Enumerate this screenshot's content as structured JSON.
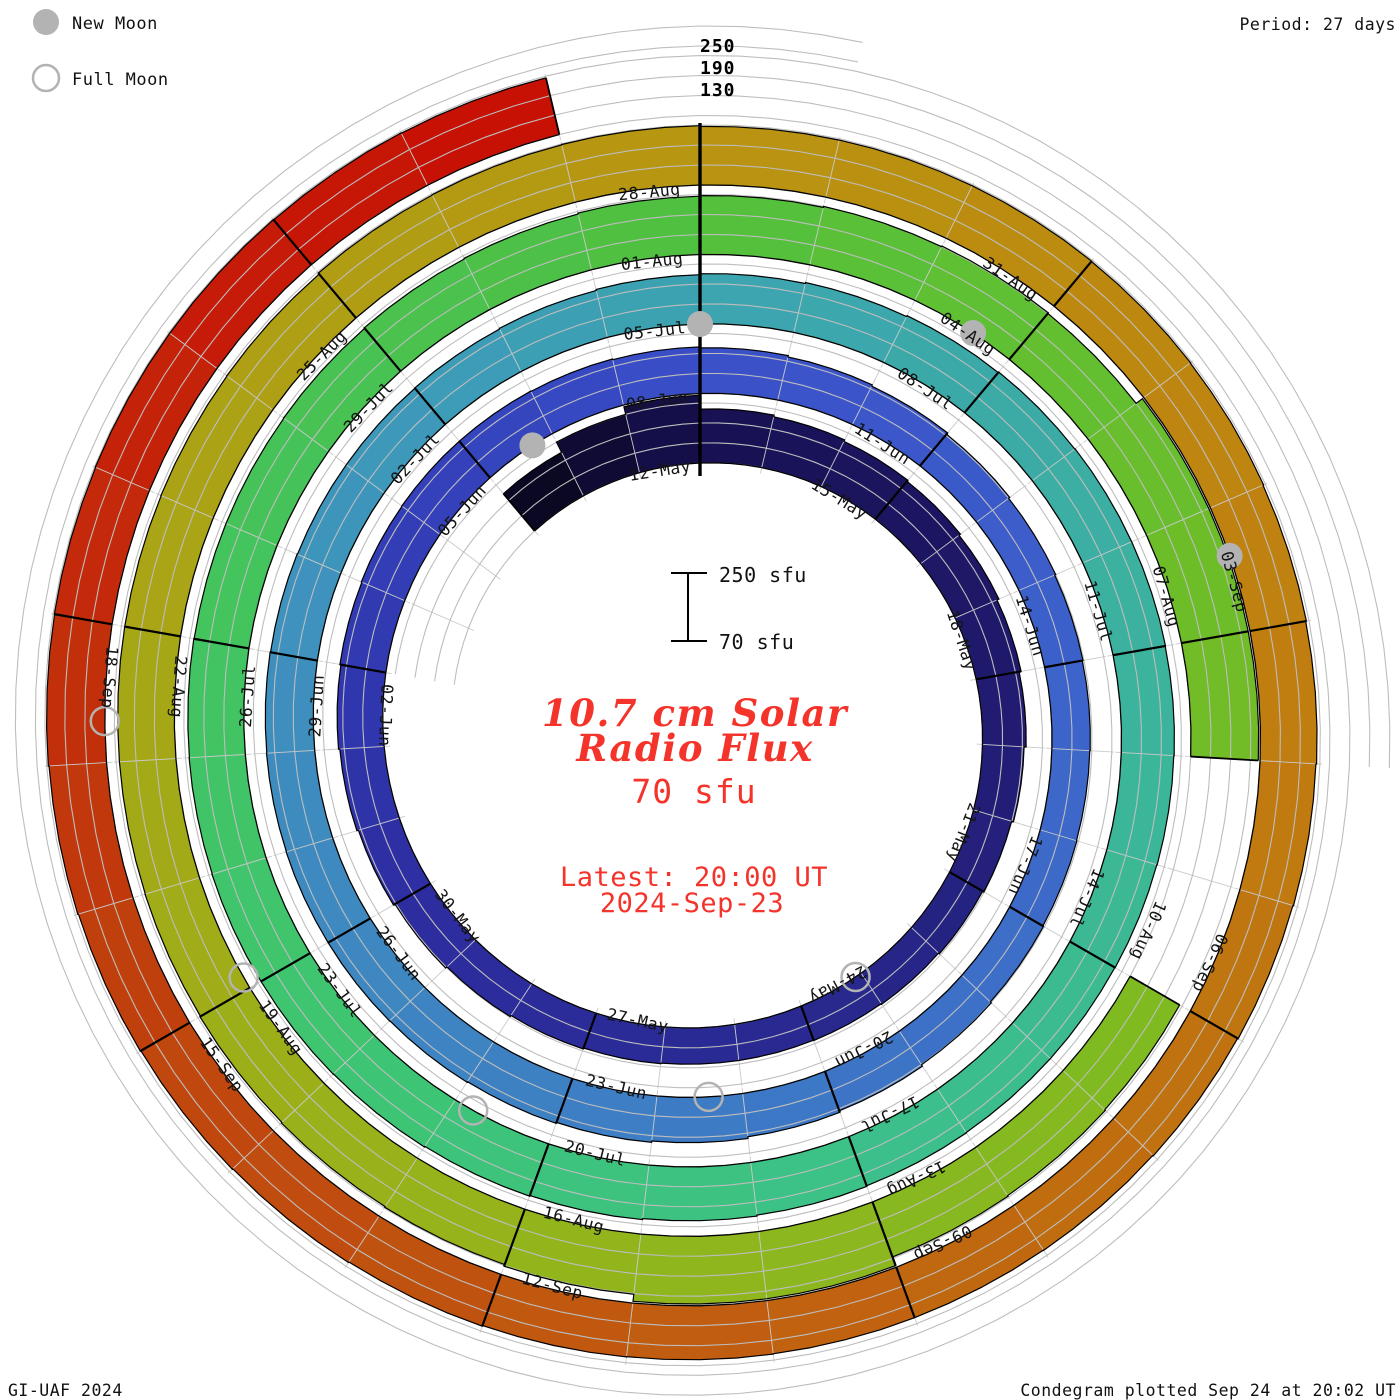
{
  "header": {
    "period_label": "Period: 27 days"
  },
  "legend": {
    "new_moon_label": "New Moon",
    "full_moon_label": "Full Moon"
  },
  "footer": {
    "credit": "GI-UAF 2024",
    "plotted": "Condegram plotted Sep 24 at 20:02 UT"
  },
  "center": {
    "title_line1": "10.7 cm Solar",
    "title_line2": "Radio Flux",
    "baseline_value": "70 sfu",
    "latest_line1": "Latest: 20:00 UT",
    "latest_line2": "2024-Sep-23"
  },
  "scale": {
    "bar_top_label": "250 sfu",
    "bar_bottom_label": "70 sfu",
    "radial_ticks": [
      "250",
      "190",
      "130"
    ]
  },
  "colors": {
    "annotation_red": "#f4332b",
    "moon_gray": "#b3b3b3",
    "grid_gray": "#bdbdbd",
    "day_line_gray": "#cacaca",
    "outline_black": "#000000",
    "label_black": "#141414"
  },
  "chart_data": {
    "type": "spiral-condegram",
    "title": "10.7 cm Solar Radio Flux",
    "period_days": 27,
    "start_date": "2024-05-09",
    "end_date": "2024-09-23",
    "base_sfu": 70,
    "max_sfu": 250,
    "gridlines_sfu": [
      70,
      130,
      190,
      250
    ],
    "ring_start_dates": [
      "12-May",
      "08-Jun",
      "05-Jul",
      "01-Aug",
      "28-Aug"
    ],
    "date_labels": [
      {
        "t": 0,
        "text": "12-May"
      },
      {
        "t": 3,
        "text": "15-May"
      },
      {
        "t": 6,
        "text": "18-May"
      },
      {
        "t": 9,
        "text": "21-May"
      },
      {
        "t": 12,
        "text": "24-May"
      },
      {
        "t": 15,
        "text": "27-May"
      },
      {
        "t": 18,
        "text": "30-May"
      },
      {
        "t": 21,
        "text": "02-Jun"
      },
      {
        "t": 24,
        "text": "05-Jun"
      },
      {
        "t": 27,
        "text": "08-Jun"
      },
      {
        "t": 30,
        "text": "11-Jun"
      },
      {
        "t": 33,
        "text": "14-Jun"
      },
      {
        "t": 36,
        "text": "17-Jun"
      },
      {
        "t": 39,
        "text": "20-Jun"
      },
      {
        "t": 42,
        "text": "23-Jun"
      },
      {
        "t": 45,
        "text": "26-Jun"
      },
      {
        "t": 48,
        "text": "29-Jun"
      },
      {
        "t": 51,
        "text": "02-Jul"
      },
      {
        "t": 54,
        "text": "05-Jul"
      },
      {
        "t": 57,
        "text": "08-Jul"
      },
      {
        "t": 60,
        "text": "11-Jul"
      },
      {
        "t": 63,
        "text": "14-Jul"
      },
      {
        "t": 66,
        "text": "17-Jul"
      },
      {
        "t": 69,
        "text": "20-Jul"
      },
      {
        "t": 72,
        "text": "23-Jul"
      },
      {
        "t": 75,
        "text": "26-Jul"
      },
      {
        "t": 78,
        "text": "29-Jul"
      },
      {
        "t": 81,
        "text": "01-Aug"
      },
      {
        "t": 84,
        "text": "04-Aug"
      },
      {
        "t": 87,
        "text": "07-Aug"
      },
      {
        "t": 90,
        "text": "10-Aug"
      },
      {
        "t": 93,
        "text": "13-Aug"
      },
      {
        "t": 96,
        "text": "16-Aug"
      },
      {
        "t": 99,
        "text": "19-Aug"
      },
      {
        "t": 102,
        "text": "22-Aug"
      },
      {
        "t": 105,
        "text": "25-Aug"
      },
      {
        "t": 108,
        "text": "28-Aug"
      },
      {
        "t": 111,
        "text": "31-Aug"
      },
      {
        "t": 114,
        "text": "03-Sep"
      },
      {
        "t": 117,
        "text": "06-Sep"
      },
      {
        "t": 120,
        "text": "09-Sep"
      },
      {
        "t": 123,
        "text": "12-Sep"
      },
      {
        "t": 126,
        "text": "15-Sep"
      },
      {
        "t": 129,
        "text": "18-Sep"
      }
    ],
    "flux": {
      "x_unit": "days since 2024-05-12 (t); one bar per day, 27 days per turn",
      "t_start": -3,
      "values": [
        216,
        250,
        255,
        232,
        227,
        222,
        218,
        213,
        207,
        201,
        195,
        189,
        185,
        182,
        180,
        179,
        179,
        181,
        184,
        188,
        193,
        198,
        203,
        207,
        210,
        212,
        213,
        213,
        212,
        210,
        207,
        203,
        199,
        194,
        190,
        187,
        185,
        184,
        185,
        187,
        191,
        196,
        201,
        206,
        210,
        213,
        215,
        216,
        216,
        215,
        214,
        213,
        212,
        212,
        213,
        215,
        218,
        221,
        224,
        227,
        229,
        230,
        230,
        229,
        228,
        227,
        226,
        226,
        227,
        229,
        232,
        235,
        237,
        239,
        240,
        240,
        239,
        238,
        237,
        237,
        238,
        240,
        242,
        245,
        247,
        250,
        252,
        250,
        255,
        255,
        255,
        null,
        null,
        242,
        244,
        246,
        255,
        255,
        252,
        247,
        245,
        243,
        241,
        240,
        240,
        240,
        241,
        242,
        246,
        247,
        248,
        246,
        246,
        246,
        245,
        244,
        242,
        240,
        238,
        236,
        234,
        232,
        231,
        231,
        232,
        233,
        235,
        237,
        239,
        241,
        243,
        245,
        246,
        247,
        247,
        246,
        245
      ]
    },
    "color_stops": [
      {
        "t": -3.5,
        "c": "#05040f"
      },
      {
        "t": 0,
        "c": "#171152"
      },
      {
        "t": 6,
        "c": "#201a6e"
      },
      {
        "t": 12,
        "c": "#292990"
      },
      {
        "t": 18,
        "c": "#2d2da0"
      },
      {
        "t": 21,
        "c": "#3138b0"
      },
      {
        "t": 24,
        "c": "#3443bc"
      },
      {
        "t": 27,
        "c": "#3a4fc8"
      },
      {
        "t": 30,
        "c": "#3b58ca"
      },
      {
        "t": 33,
        "c": "#3c62ca"
      },
      {
        "t": 36,
        "c": "#3d6cc8"
      },
      {
        "t": 39,
        "c": "#3d76c6"
      },
      {
        "t": 42,
        "c": "#3e80c3"
      },
      {
        "t": 45,
        "c": "#3e88c0"
      },
      {
        "t": 48,
        "c": "#3e90be"
      },
      {
        "t": 51,
        "c": "#3d9ab8"
      },
      {
        "t": 54,
        "c": "#3ca4b0"
      },
      {
        "t": 57,
        "c": "#3caaa8"
      },
      {
        "t": 60,
        "c": "#3cb29e"
      },
      {
        "t": 63,
        "c": "#3cba92"
      },
      {
        "t": 66,
        "c": "#3cc088"
      },
      {
        "t": 69,
        "c": "#3dc47c"
      },
      {
        "t": 72,
        "c": "#3fc46e"
      },
      {
        "t": 75,
        "c": "#42c460"
      },
      {
        "t": 78,
        "c": "#48c250"
      },
      {
        "t": 81,
        "c": "#52c03e"
      },
      {
        "t": 84,
        "c": "#60c030"
      },
      {
        "t": 87,
        "c": "#70bc28"
      },
      {
        "t": 90,
        "c": "#7eba22"
      },
      {
        "t": 93,
        "c": "#8ab81e"
      },
      {
        "t": 96,
        "c": "#94b41c"
      },
      {
        "t": 99,
        "c": "#9eae18"
      },
      {
        "t": 102,
        "c": "#a8a616"
      },
      {
        "t": 105,
        "c": "#b09e13"
      },
      {
        "t": 108,
        "c": "#b89511"
      },
      {
        "t": 111,
        "c": "#bc8a10"
      },
      {
        "t": 114,
        "c": "#c08010"
      },
      {
        "t": 117,
        "c": "#c07410"
      },
      {
        "t": 120,
        "c": "#c06510"
      },
      {
        "t": 123,
        "c": "#c05510"
      },
      {
        "t": 126,
        "c": "#c0440d"
      },
      {
        "t": 129,
        "c": "#c22c0a"
      },
      {
        "t": 132,
        "c": "#c61807"
      },
      {
        "t": 134.5,
        "c": "#c80d04"
      }
    ],
    "new_moons": [
      {
        "date": "2024-06-06",
        "t": 24.7
      },
      {
        "date": "2024-07-05",
        "t": 54.0
      },
      {
        "date": "2024-08-04",
        "t": 83.6
      },
      {
        "date": "2024-09-03",
        "t": 113.4
      }
    ],
    "full_moons": [
      {
        "date": "2024-05-23",
        "t": 11.1
      },
      {
        "date": "2024-06-21",
        "t": 40.4
      },
      {
        "date": "2024-07-21",
        "t": 69.8
      },
      {
        "date": "2024-08-19",
        "t": 99.1
      },
      {
        "date": "2024-09-17",
        "t": 128.3
      }
    ]
  }
}
